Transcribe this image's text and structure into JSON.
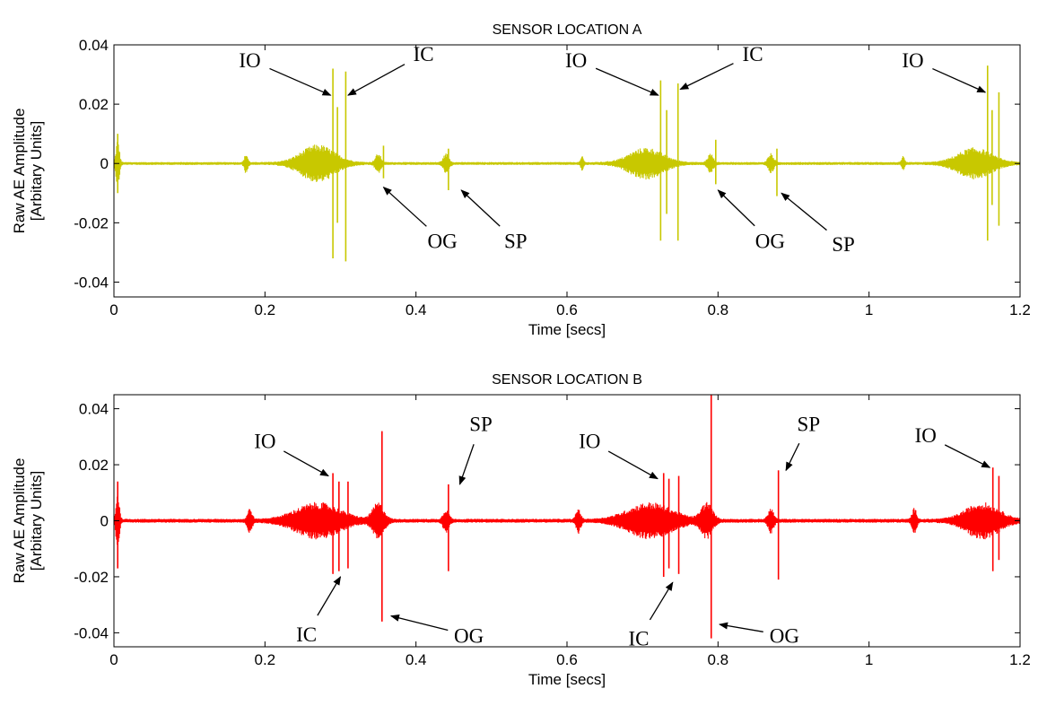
{
  "chart_data": [
    {
      "type": "line",
      "title": "SENSOR LOCATION A",
      "xlabel": "Time [secs]",
      "ylabel_line1": "Raw AE Amplitude",
      "ylabel_line2": "[Arbitary Units]",
      "xlim": [
        0,
        1.2
      ],
      "ylim": [
        -0.045,
        0.04
      ],
      "xticks": [
        0,
        0.2,
        0.4,
        0.6,
        0.8,
        1,
        1.2
      ],
      "xtick_labels": [
        "0",
        "0.2",
        "0.4",
        "0.6",
        "0.8",
        "1",
        "1.2"
      ],
      "yticks": [
        0.04,
        0.02,
        0,
        -0.02,
        -0.04
      ],
      "ytick_labels": [
        "0.04",
        "0.02",
        "0",
        "-0.02",
        "-0.04"
      ],
      "grid": false,
      "series": [
        {
          "color": "#c8c800",
          "baseline_noise": 0.0005,
          "bursts": [
            {
              "t": 0.005,
              "amp": 0.008,
              "width": 0.006
            },
            {
              "t": 0.175,
              "amp": 0.003,
              "width": 0.006
            },
            {
              "t": 0.27,
              "amp": 0.006,
              "width": 0.06
            },
            {
              "t": 0.35,
              "amp": 0.003,
              "width": 0.01
            },
            {
              "t": 0.44,
              "amp": 0.003,
              "width": 0.01
            },
            {
              "t": 0.62,
              "amp": 0.002,
              "width": 0.005
            },
            {
              "t": 0.705,
              "amp": 0.005,
              "width": 0.06
            },
            {
              "t": 0.79,
              "amp": 0.003,
              "width": 0.01
            },
            {
              "t": 0.87,
              "amp": 0.003,
              "width": 0.01
            },
            {
              "t": 1.045,
              "amp": 0.002,
              "width": 0.005
            },
            {
              "t": 1.14,
              "amp": 0.005,
              "width": 0.06
            }
          ],
          "spikes": [
            {
              "t": 0.005,
              "up": 0.01,
              "down": -0.01
            },
            {
              "t": 0.29,
              "up": 0.032,
              "down": -0.032
            },
            {
              "t": 0.296,
              "up": 0.019,
              "down": -0.02
            },
            {
              "t": 0.307,
              "up": 0.031,
              "down": -0.033
            },
            {
              "t": 0.357,
              "up": 0.006,
              "down": -0.005
            },
            {
              "t": 0.443,
              "up": 0.005,
              "down": -0.009
            },
            {
              "t": 0.724,
              "up": 0.028,
              "down": -0.026
            },
            {
              "t": 0.732,
              "up": 0.018,
              "down": -0.017
            },
            {
              "t": 0.747,
              "up": 0.027,
              "down": -0.026
            },
            {
              "t": 0.797,
              "up": 0.008,
              "down": -0.007
            },
            {
              "t": 0.878,
              "up": 0.005,
              "down": -0.011
            },
            {
              "t": 1.157,
              "up": 0.033,
              "down": -0.026
            },
            {
              "t": 1.163,
              "up": 0.018,
              "down": -0.014
            },
            {
              "t": 1.172,
              "up": 0.024,
              "down": -0.021
            }
          ]
        }
      ],
      "annotations": [
        {
          "label": "IO",
          "text_x": 0.18,
          "text_y": 0.0325,
          "tip_x": 0.287,
          "tip_y": 0.023
        },
        {
          "label": "IC",
          "text_x": 0.41,
          "text_y": 0.0345,
          "tip_x": 0.31,
          "tip_y": 0.023
        },
        {
          "label": "IO",
          "text_x": 0.612,
          "text_y": 0.0325,
          "tip_x": 0.721,
          "tip_y": 0.023
        },
        {
          "label": "IC",
          "text_x": 0.846,
          "text_y": 0.0345,
          "tip_x": 0.75,
          "tip_y": 0.025
        },
        {
          "label": "IO",
          "text_x": 1.058,
          "text_y": 0.0325,
          "tip_x": 1.154,
          "tip_y": 0.024
        },
        {
          "label": "OG",
          "text_x": 0.435,
          "text_y": -0.0285,
          "tip_x": 0.357,
          "tip_y": -0.008
        },
        {
          "label": "SP",
          "text_x": 0.532,
          "text_y": -0.0285,
          "tip_x": 0.46,
          "tip_y": -0.009
        },
        {
          "label": "OG",
          "text_x": 0.869,
          "text_y": -0.0285,
          "tip_x": 0.8,
          "tip_y": -0.009
        },
        {
          "label": "SP",
          "text_x": 0.966,
          "text_y": -0.0295,
          "tip_x": 0.884,
          "tip_y": -0.01
        }
      ]
    },
    {
      "type": "line",
      "title": "SENSOR LOCATION B",
      "xlabel": "Time [secs]",
      "ylabel_line1": "Raw AE Amplitude",
      "ylabel_line2": "[Arbitary Units]",
      "xlim": [
        0,
        1.2
      ],
      "ylim": [
        -0.045,
        0.045
      ],
      "xticks": [
        0,
        0.2,
        0.4,
        0.6,
        0.8,
        1,
        1.2
      ],
      "xtick_labels": [
        "0",
        "0.2",
        "0.4",
        "0.6",
        "0.8",
        "1",
        "1.2"
      ],
      "yticks": [
        0.04,
        0.02,
        0,
        -0.02,
        -0.04
      ],
      "ytick_labels": [
        "0.04",
        "0.02",
        "0",
        "-0.02",
        "-0.04"
      ],
      "grid": false,
      "series": [
        {
          "color": "#ff0000",
          "baseline_noise": 0.0007,
          "bursts": [
            {
              "t": 0.005,
              "amp": 0.01,
              "width": 0.006
            },
            {
              "t": 0.18,
              "amp": 0.004,
              "width": 0.008
            },
            {
              "t": 0.27,
              "amp": 0.006,
              "width": 0.08
            },
            {
              "t": 0.35,
              "amp": 0.006,
              "width": 0.02
            },
            {
              "t": 0.44,
              "amp": 0.004,
              "width": 0.01
            },
            {
              "t": 0.615,
              "amp": 0.004,
              "width": 0.008
            },
            {
              "t": 0.71,
              "amp": 0.006,
              "width": 0.08
            },
            {
              "t": 0.785,
              "amp": 0.006,
              "width": 0.02
            },
            {
              "t": 0.87,
              "amp": 0.004,
              "width": 0.01
            },
            {
              "t": 1.06,
              "amp": 0.004,
              "width": 0.008
            },
            {
              "t": 1.15,
              "amp": 0.006,
              "width": 0.06
            }
          ],
          "spikes": [
            {
              "t": 0.005,
              "up": 0.014,
              "down": -0.017
            },
            {
              "t": 0.29,
              "up": 0.017,
              "down": -0.019
            },
            {
              "t": 0.298,
              "up": 0.014,
              "down": -0.018
            },
            {
              "t": 0.31,
              "up": 0.014,
              "down": -0.017
            },
            {
              "t": 0.355,
              "up": 0.032,
              "down": -0.036
            },
            {
              "t": 0.443,
              "up": 0.013,
              "down": -0.018
            },
            {
              "t": 0.728,
              "up": 0.017,
              "down": -0.02
            },
            {
              "t": 0.735,
              "up": 0.015,
              "down": -0.017
            },
            {
              "t": 0.748,
              "up": 0.016,
              "down": -0.019
            },
            {
              "t": 0.791,
              "up": 0.045,
              "down": -0.042
            },
            {
              "t": 0.88,
              "up": 0.018,
              "down": -0.021
            },
            {
              "t": 1.164,
              "up": 0.019,
              "down": -0.018
            },
            {
              "t": 1.172,
              "up": 0.016,
              "down": -0.014
            }
          ]
        }
      ],
      "annotations": [
        {
          "label": "IO",
          "text_x": 0.2,
          "text_y": 0.026,
          "tip_x": 0.284,
          "tip_y": 0.016
        },
        {
          "label": "SP",
          "text_x": 0.486,
          "text_y": 0.032,
          "tip_x": 0.458,
          "tip_y": 0.013
        },
        {
          "label": "IO",
          "text_x": 0.63,
          "text_y": 0.026,
          "tip_x": 0.72,
          "tip_y": 0.015
        },
        {
          "label": "SP",
          "text_x": 0.92,
          "text_y": 0.032,
          "tip_x": 0.89,
          "tip_y": 0.018
        },
        {
          "label": "IO",
          "text_x": 1.075,
          "text_y": 0.028,
          "tip_x": 1.16,
          "tip_y": 0.019
        },
        {
          "label": "IC",
          "text_x": 0.255,
          "text_y": -0.043,
          "tip_x": 0.3,
          "tip_y": -0.02
        },
        {
          "label": "OG",
          "text_x": 0.47,
          "text_y": -0.0435,
          "tip_x": 0.367,
          "tip_y": -0.034
        },
        {
          "label": "IC",
          "text_x": 0.695,
          "text_y": -0.0445,
          "tip_x": 0.74,
          "tip_y": -0.022
        },
        {
          "label": "OG",
          "text_x": 0.888,
          "text_y": -0.0435,
          "tip_x": 0.802,
          "tip_y": -0.037
        }
      ]
    }
  ]
}
